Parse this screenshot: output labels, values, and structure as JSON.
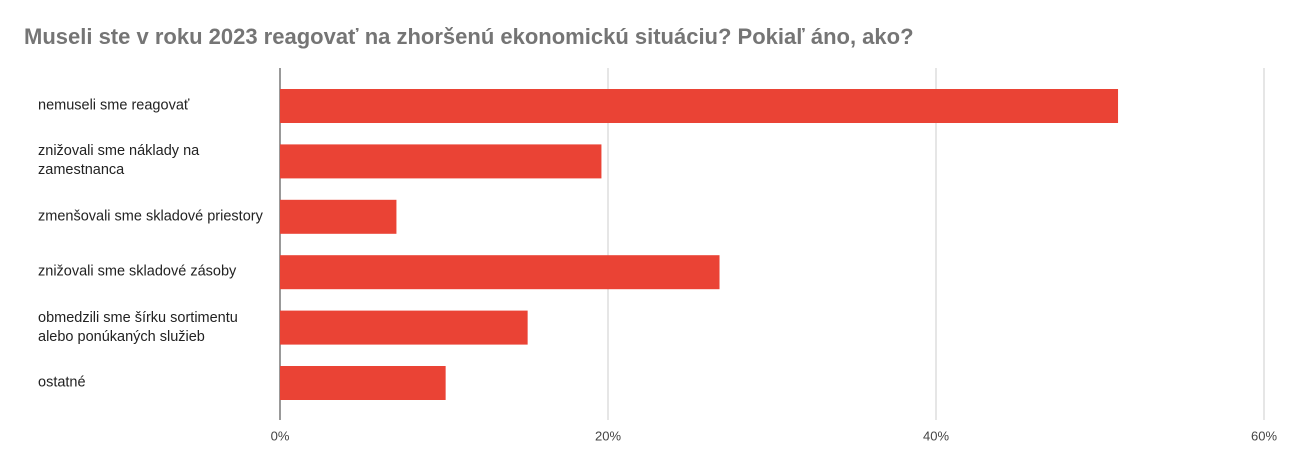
{
  "chart_data": {
    "type": "bar",
    "orientation": "horizontal",
    "title": "Museli ste v roku 2023 reagovať na zhoršenú ekonomickú situáciu? Pokiaľ áno, ako?",
    "categories": [
      "nemuseli sme reagovať",
      "znižovali sme náklady na zamestnanca",
      "zmenšovali sme skladové priestory",
      "znižovali sme skladové zásoby",
      "obmedzili sme šírku sortimentu alebo ponúkaných služieb",
      "ostatné"
    ],
    "values": [
      51.1,
      19.6,
      7.1,
      26.8,
      15.1,
      10.1
    ],
    "color": "#ea4335",
    "xlim": [
      0,
      60
    ],
    "xticks": [
      {
        "value": 0,
        "label": "0%"
      },
      {
        "value": 20,
        "label": "20%"
      },
      {
        "value": 40,
        "label": "40%"
      },
      {
        "value": 60,
        "label": "60%"
      }
    ],
    "grid": true
  }
}
